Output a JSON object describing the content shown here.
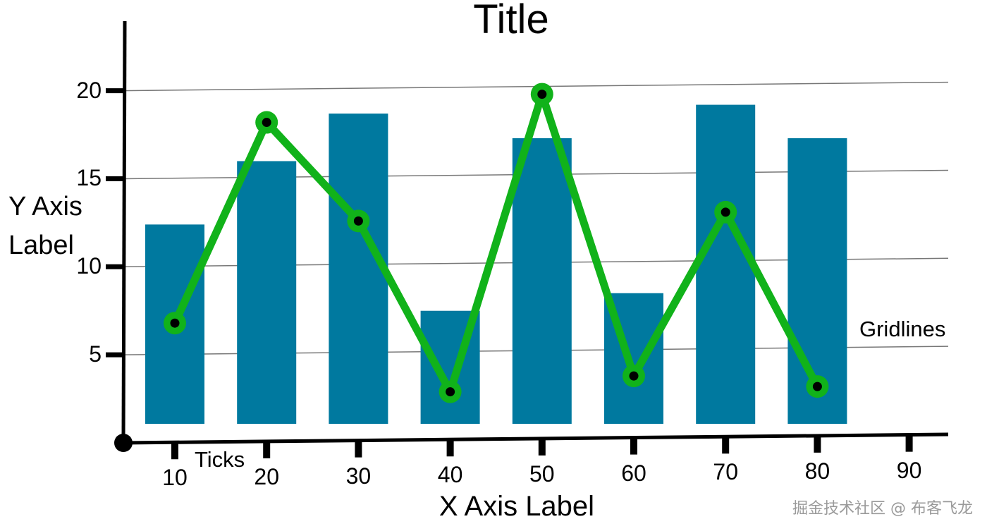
{
  "chart_data": {
    "type": "bar+line",
    "title": "Title",
    "xlabel": "X Axis Label",
    "ylabel": "Y Axis Label",
    "x_ticks": [
      10,
      20,
      30,
      40,
      50,
      60,
      70,
      80,
      90
    ],
    "y_ticks": [
      5,
      10,
      15,
      20
    ],
    "xlim": [
      5,
      95
    ],
    "ylim": [
      0,
      24
    ],
    "grid": true,
    "categories": [
      10,
      20,
      30,
      40,
      50,
      60,
      70,
      80
    ],
    "series": [
      {
        "type": "bar",
        "values": [
          12.4,
          16.0,
          18.7,
          7.5,
          17.3,
          8.5,
          19.2,
          17.3
        ],
        "color": "#00799f"
      },
      {
        "type": "line",
        "values": [
          6.8,
          18.2,
          12.6,
          2.9,
          19.8,
          3.8,
          13.1,
          3.2
        ],
        "color": "#11b21a",
        "marker_color": "#000000"
      }
    ],
    "annotations": {
      "ticks": "Ticks",
      "gridlines": "Gridlines"
    }
  },
  "watermark": "掘金技术社区 @ 布客飞龙"
}
